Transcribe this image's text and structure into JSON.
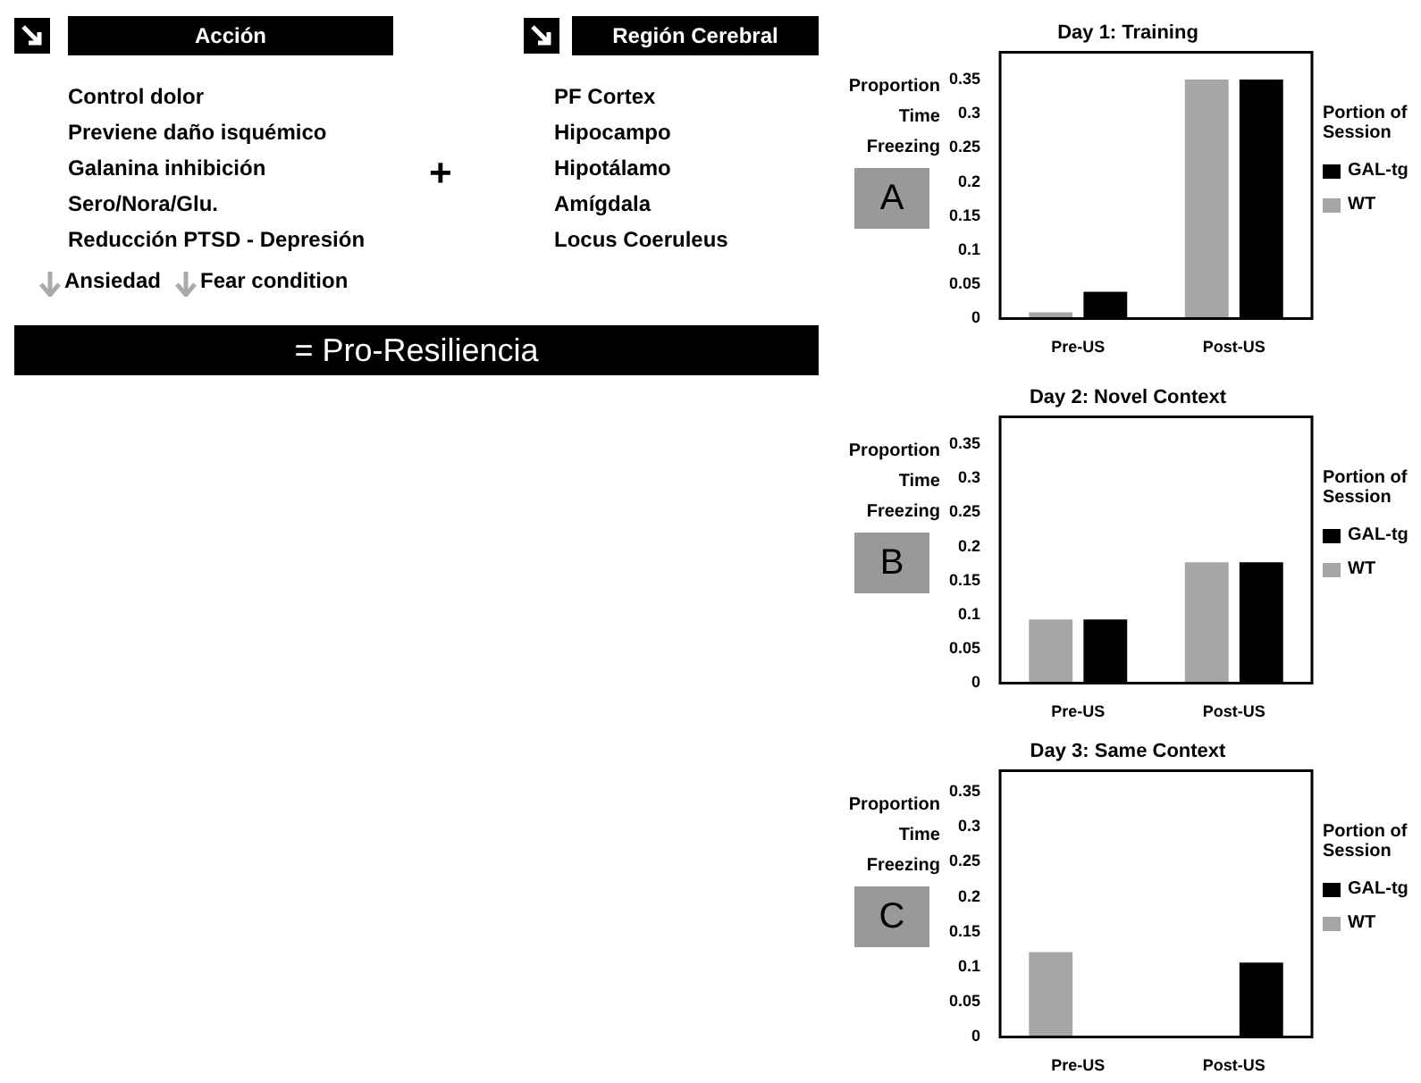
{
  "chart_data": [
    {
      "type": "other",
      "annotations": [
        "Acción",
        "Control dolor",
        "Previene daño isquémico",
        "Galanina inhibición",
        "Sero/Nora/Glu.",
        "Reducción PTSD - Depresión",
        "Ansiedad",
        "Fear condition",
        "Región Cerebral",
        "PF Cortex",
        "Hipocampo",
        "Hipotálamo",
        "Amígdala",
        "Locus Coeruleus",
        "+",
        "= Pro-Resiliencia"
      ]
    },
    {
      "type": "bar",
      "title": "Day 1: Training",
      "ylabel": "Proportion Time Freezing",
      "legend_title": "Portion of Session",
      "legend": "right",
      "annotations": [
        "A"
      ],
      "categories": [
        "Pre-US",
        "Post-US"
      ],
      "series": [
        {
          "name": "WT",
          "color": "#a6a6a6",
          "values": [
            0.009,
            0.35
          ]
        },
        {
          "name": "GAL-tg",
          "color": "#000000",
          "values": [
            0.039,
            0.35
          ]
        }
      ],
      "ylim": [
        0,
        0.39
      ],
      "yticks": [
        0,
        0.05,
        0.1,
        0.15,
        0.2,
        0.25,
        0.3,
        0.35
      ]
    },
    {
      "type": "bar",
      "title": "Day 2: Novel Context",
      "ylabel": "Proportion Time Freezing",
      "legend_title": "Portion of Session",
      "legend": "right",
      "annotations": [
        "B"
      ],
      "categories": [
        "Pre-US",
        "Post-US"
      ],
      "series": [
        {
          "name": "WT",
          "color": "#a6a6a6",
          "values": [
            0.093,
            0.177
          ]
        },
        {
          "name": "GAL-tg",
          "color": "#000000",
          "values": [
            0.093,
            0.177
          ]
        }
      ],
      "ylim": [
        0,
        0.39
      ],
      "yticks": [
        0,
        0.05,
        0.1,
        0.15,
        0.2,
        0.25,
        0.3,
        0.35
      ]
    },
    {
      "type": "bar",
      "title": "Day 3: Same Context",
      "ylabel": "Proportion Time Freezing",
      "legend_title": "Portion of Session",
      "legend": "right",
      "annotations": [
        "C"
      ],
      "categories": [
        "Pre-US",
        "Post-US"
      ],
      "series": [
        {
          "name": "WT",
          "color": "#a6a6a6",
          "values": [
            0.121,
            null
          ]
        },
        {
          "name": "GAL-tg",
          "color": "#000000",
          "values": [
            null,
            0.106
          ]
        }
      ],
      "ylim": [
        0,
        0.38
      ],
      "yticks": [
        0,
        0.05,
        0.1,
        0.15,
        0.2,
        0.25,
        0.3,
        0.35
      ]
    }
  ]
}
